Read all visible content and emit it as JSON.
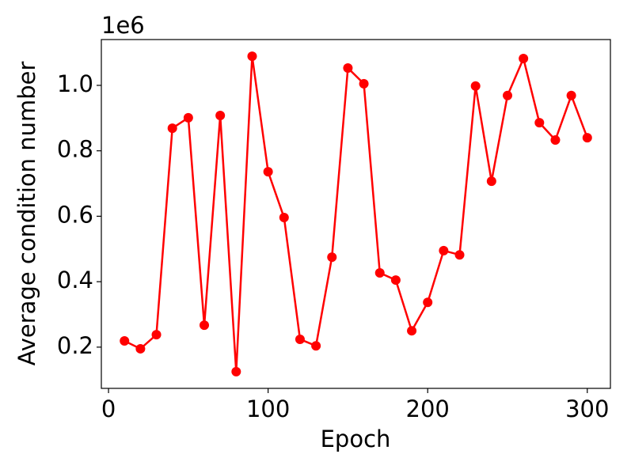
{
  "chart_data": {
    "type": "line",
    "x_label": "Epoch",
    "y_label": "Average condition number",
    "y_offset_label": "1e6",
    "x": [
      10,
      20,
      30,
      40,
      50,
      60,
      70,
      80,
      90,
      100,
      110,
      120,
      130,
      140,
      150,
      160,
      170,
      180,
      190,
      200,
      210,
      220,
      230,
      240,
      250,
      260,
      270,
      280,
      290,
      300
    ],
    "series": [
      {
        "name": "Average condition number",
        "color": "#ff0000",
        "values": [
          0.219,
          0.195,
          0.238,
          0.869,
          0.901,
          0.267,
          0.908,
          0.125,
          1.089,
          0.736,
          0.596,
          0.224,
          0.204,
          0.475,
          1.053,
          1.005,
          0.427,
          0.405,
          0.25,
          0.337,
          0.495,
          0.482,
          0.998,
          0.707,
          0.969,
          1.082,
          0.886,
          0.833,
          0.969,
          0.84
        ]
      }
    ],
    "xlim": [
      -4.5,
      314.5
    ],
    "ylim": [
      0.074,
      1.14
    ],
    "xticks": [
      0,
      100,
      200,
      300
    ],
    "yticks": [
      {
        "value": 0.2,
        "label": "0.2"
      },
      {
        "value": 0.4,
        "label": "0.4"
      },
      {
        "value": 0.6,
        "label": "0.6"
      },
      {
        "value": 0.8,
        "label": "0.8"
      },
      {
        "value": 1.0,
        "label": "1.0"
      }
    ],
    "grid": false,
    "markers": true
  }
}
